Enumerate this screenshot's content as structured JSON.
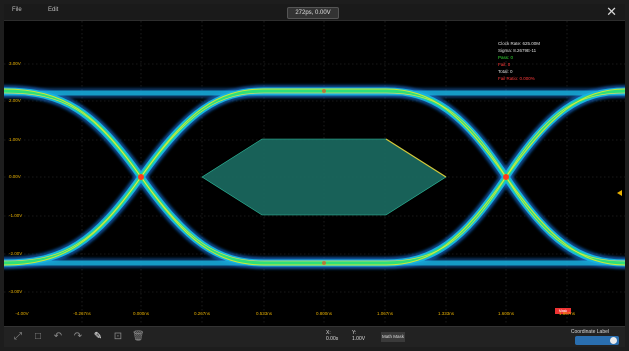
{
  "menu": {
    "file": "File",
    "edit": "Edit"
  },
  "title": "272ps, 0.00V",
  "y_labels": [
    "3.00V",
    "2.00V",
    "1.00V",
    "0.00V",
    "-1.00V",
    "-2.00V",
    "-3.00V"
  ],
  "x_labels": [
    "-4.00V",
    "-0.267ns",
    "0.000ns",
    "0.267ns",
    "0.533ns",
    "0.800ns",
    "1.067ns",
    "1.333ns",
    "1.600ns",
    "1.867ns"
  ],
  "stats": {
    "clock_rate": "Clock Rate: 625.00M",
    "sigma": "Sigma: 8.2679E-11",
    "pass": "Pass: 0",
    "fail": "Fail: 0",
    "total": "Total: 0",
    "fail_ratio": "Fail Ratio: 0.000%"
  },
  "mask": {
    "tag": "Mask",
    "tag_suffix": ""
  },
  "toolbar": {
    "x_label": "X:",
    "x_value": "0.00s",
    "y_label": "Y:",
    "y_value": "1.00V",
    "chip": "Math Mask",
    "coordinate_label": "Coordinate Label"
  },
  "colors": {
    "accent": "#e8b000",
    "mask_fill": "#1b6b62",
    "trace_core": "#ffe34a"
  }
}
